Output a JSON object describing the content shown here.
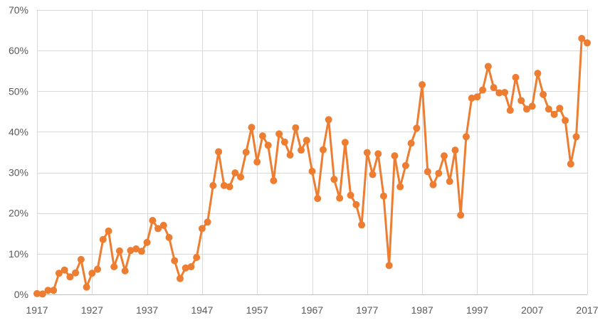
{
  "chart_data": {
    "type": "line",
    "title": "",
    "xlabel": "",
    "ylabel": "",
    "xlim": [
      1917,
      2017
    ],
    "ylim": [
      0,
      70
    ],
    "x_ticks": [
      1917,
      1927,
      1937,
      1947,
      1957,
      1967,
      1977,
      1987,
      1997,
      2007,
      2017
    ],
    "x_tick_labels": [
      "1917",
      "1927",
      "1937",
      "1947",
      "1957",
      "1967",
      "1977",
      "1987",
      "1997",
      "2007",
      "2017"
    ],
    "y_ticks": [
      0,
      10,
      20,
      30,
      40,
      50,
      60,
      70
    ],
    "y_tick_labels": [
      "0%",
      "10%",
      "20%",
      "30%",
      "40%",
      "50%",
      "60%",
      "70%"
    ],
    "grid": true,
    "legend": "none",
    "color": "#ED7D31",
    "series": [
      {
        "x": [
          1917,
          1918,
          1919,
          1920,
          1921,
          1922,
          1923,
          1924,
          1925,
          1926,
          1927,
          1928,
          1929,
          1930,
          1931,
          1932,
          1933,
          1934,
          1935,
          1936,
          1937,
          1938,
          1939,
          1940,
          1941,
          1942,
          1943,
          1944,
          1945,
          1946,
          1947,
          1948,
          1949,
          1950,
          1951,
          1952,
          1953,
          1954,
          1955,
          1956,
          1957,
          1958,
          1959,
          1960,
          1961,
          1962,
          1963,
          1964,
          1965,
          1966,
          1967,
          1968,
          1969,
          1970,
          1971,
          1972,
          1973,
          1974,
          1975,
          1976,
          1977,
          1978,
          1979,
          1980,
          1981,
          1982,
          1983,
          1984,
          1985,
          1986,
          1987,
          1988,
          1989,
          1990,
          1991,
          1992,
          1993,
          1994,
          1995,
          1996,
          1997,
          1998,
          1999,
          2000,
          2001,
          2002,
          2003,
          2004,
          2005,
          2006,
          2007,
          2008,
          2009,
          2010,
          2011,
          2012,
          2013,
          2014,
          2015,
          2016,
          2017
        ],
        "values": [
          0.2,
          0.1,
          1.0,
          1.0,
          5.2,
          6.0,
          4.3,
          5.3,
          8.6,
          1.8,
          5.2,
          6.2,
          13.5,
          15.6,
          6.8,
          10.7,
          5.8,
          10.8,
          11.2,
          10.6,
          12.8,
          18.2,
          16.2,
          17.0,
          14.0,
          8.3,
          3.9,
          6.5,
          6.8,
          9.1,
          16.2,
          17.8,
          26.8,
          35.1,
          26.8,
          26.5,
          29.9,
          28.9,
          35.0,
          41.1,
          32.6,
          39.0,
          36.7,
          28.0,
          39.5,
          37.5,
          34.3,
          41.0,
          35.5,
          37.9,
          30.3,
          23.6,
          35.6,
          43.0,
          28.3,
          23.7,
          37.4,
          24.4,
          22.1,
          17.1,
          34.9,
          29.5,
          34.6,
          24.2,
          7.1,
          34.1,
          26.5,
          31.7,
          37.2,
          40.9,
          51.6,
          30.2,
          27.0,
          29.8,
          34.1,
          27.8,
          35.5,
          19.5,
          38.8,
          48.3,
          48.6,
          50.3,
          56.1,
          50.9,
          49.6,
          49.7,
          45.3,
          53.4,
          47.7,
          45.6,
          46.3,
          54.4,
          49.2,
          45.6,
          44.3,
          45.8,
          42.8,
          32.1,
          38.8,
          63.0,
          61.9
        ]
      }
    ]
  }
}
